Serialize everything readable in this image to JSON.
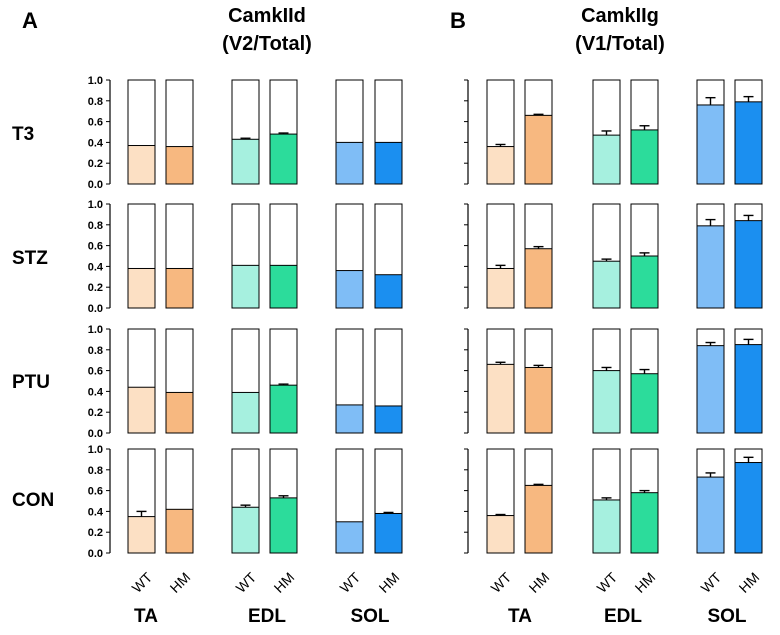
{
  "panels": {
    "A": {
      "letter": "A",
      "title_line1": "CamkIId",
      "title_line2": "(V2/Total)"
    },
    "B": {
      "letter": "B",
      "title_line1": "CamkIIg",
      "title_line2": "(V1/Total)"
    }
  },
  "rows": [
    "T3",
    "STZ",
    "PTU",
    "CON"
  ],
  "groups": [
    "TA",
    "EDL",
    "SOL"
  ],
  "genotypes": [
    "WT",
    "HM"
  ],
  "y_ticks": [
    "0.0",
    "0.2",
    "0.4",
    "0.6",
    "0.8",
    "1.0"
  ],
  "colors": {
    "TA": {
      "WT": "#fce0c4",
      "HM": "#f7b880"
    },
    "EDL": {
      "WT": "#a6f0df",
      "HM": "#2cdc9b"
    },
    "SOL": {
      "WT": "#7fbdf6",
      "HM": "#1b8ff0"
    }
  },
  "chart_data": [
    {
      "type": "bar",
      "panel": "A",
      "title": "CamkIId (V2/Total)",
      "ylim": [
        0,
        1.0
      ],
      "categories": [
        "TA WT",
        "TA HM",
        "EDL WT",
        "EDL HM",
        "SOL WT",
        "SOL HM"
      ],
      "series": [
        {
          "name": "T3",
          "values": [
            0.37,
            0.36,
            0.43,
            0.48,
            0.4,
            0.4
          ],
          "errors": [
            0,
            0,
            0.01,
            0.01,
            0,
            0
          ]
        },
        {
          "name": "STZ",
          "values": [
            0.38,
            0.38,
            0.41,
            0.41,
            0.36,
            0.32
          ],
          "errors": [
            0,
            0,
            0,
            0,
            0,
            0
          ]
        },
        {
          "name": "PTU",
          "values": [
            0.44,
            0.39,
            0.39,
            0.46,
            0.27,
            0.26
          ],
          "errors": [
            0,
            0,
            0,
            0.01,
            0,
            0
          ]
        },
        {
          "name": "CON",
          "values": [
            0.35,
            0.42,
            0.44,
            0.53,
            0.3,
            0.38
          ],
          "errors": [
            0.05,
            0,
            0.02,
            0.02,
            0,
            0.01
          ]
        }
      ]
    },
    {
      "type": "bar",
      "panel": "B",
      "title": "CamkIIg (V1/Total)",
      "ylim": [
        0,
        1.0
      ],
      "categories": [
        "TA WT",
        "TA HM",
        "EDL WT",
        "EDL HM",
        "SOL WT",
        "SOL HM"
      ],
      "series": [
        {
          "name": "T3",
          "values": [
            0.36,
            0.66,
            0.47,
            0.52,
            0.76,
            0.79
          ],
          "errors": [
            0.02,
            0.01,
            0.04,
            0.04,
            0.07,
            0.05
          ]
        },
        {
          "name": "STZ",
          "values": [
            0.38,
            0.57,
            0.45,
            0.5,
            0.79,
            0.84
          ],
          "errors": [
            0.03,
            0.02,
            0.02,
            0.03,
            0.06,
            0.05
          ]
        },
        {
          "name": "PTU",
          "values": [
            0.66,
            0.63,
            0.6,
            0.57,
            0.84,
            0.85
          ],
          "errors": [
            0.02,
            0.02,
            0.03,
            0.04,
            0.03,
            0.05
          ]
        },
        {
          "name": "CON",
          "values": [
            0.36,
            0.65,
            0.51,
            0.58,
            0.73,
            0.87
          ],
          "errors": [
            0.01,
            0.01,
            0.02,
            0.02,
            0.04,
            0.05
          ]
        }
      ]
    }
  ]
}
